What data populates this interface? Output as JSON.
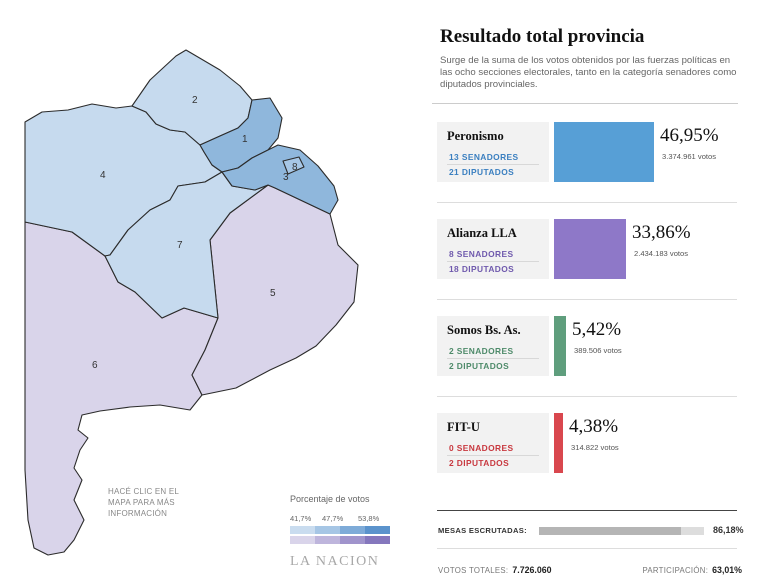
{
  "map": {
    "hint": "HACÉ CLIC EN EL MAPA PARA MÁS INFORMACIÓN",
    "sections": [
      {
        "id": "1",
        "label": "1",
        "color": "#8fb7dc"
      },
      {
        "id": "2",
        "label": "2",
        "color": "#c6daee"
      },
      {
        "id": "3",
        "label": "3",
        "color": "#8fb7dc"
      },
      {
        "id": "4",
        "label": "4",
        "color": "#c6daee"
      },
      {
        "id": "5",
        "label": "5",
        "color": "#d9d4ea"
      },
      {
        "id": "6",
        "label": "6",
        "color": "#d9d4ea"
      },
      {
        "id": "7",
        "label": "7",
        "color": "#c6daee"
      },
      {
        "id": "8",
        "label": "8",
        "color": "#a7c7e6"
      }
    ]
  },
  "legend": {
    "title": "Porcentaje de votos",
    "ticks": [
      "41,7%",
      "47,7%",
      "53,8%"
    ],
    "blue_scale": [
      "#c9dcef",
      "#a6c6e5",
      "#7eabd8",
      "#5b93cc"
    ],
    "purple_scale": [
      "#d9d4ea",
      "#beb5dc",
      "#a094cc",
      "#8577bd"
    ]
  },
  "brand": "LA NACION",
  "panel": {
    "title": "Resultado total provincia",
    "subtitle": "Surge de la suma de los votos obtenidos por las fuerzas políticas en las ocho secciones electorales, tanto en la categoría senadores como diputados provinciales.",
    "parties": [
      {
        "name": "Peronismo",
        "senadores": "13 SENADORES",
        "diputados": "21 DIPUTADOS",
        "pct": "46,95%",
        "pct_value": 46.95,
        "votes": "3.374.961 votos",
        "color": "#579fd6",
        "label_color": "#3a7fc0"
      },
      {
        "name": "Alianza LLA",
        "senadores": "8 SENADORES",
        "diputados": "18 DIPUTADOS",
        "pct": "33,86%",
        "pct_value": 33.86,
        "votes": "2.434.183 votos",
        "color": "#8e78c8",
        "label_color": "#6f59ad"
      },
      {
        "name": "Somos Bs. As.",
        "senadores": "2 SENADORES",
        "diputados": "2 DIPUTADOS",
        "pct": "5,42%",
        "pct_value": 5.42,
        "votes": "389.506 votos",
        "color": "#5f9e7d",
        "label_color": "#4d8a69"
      },
      {
        "name": "FIT-U",
        "senadores": "0 SENADORES",
        "diputados": "2 DIPUTADOS",
        "pct": "4,38%",
        "pct_value": 4.38,
        "votes": "314.822 votos",
        "color": "#d9474e",
        "label_color": "#c8383f"
      }
    ],
    "mesas_label": "MESAS ESCRUTADAS:",
    "mesas_value": "86,18%",
    "mesas_fraction": 0.8618,
    "totales_label": "VOTOS TOTALES:",
    "totales_value": "7.726.060",
    "participacion_label": "PARTICIPACIÓN:",
    "participacion_value": "63,01%"
  }
}
